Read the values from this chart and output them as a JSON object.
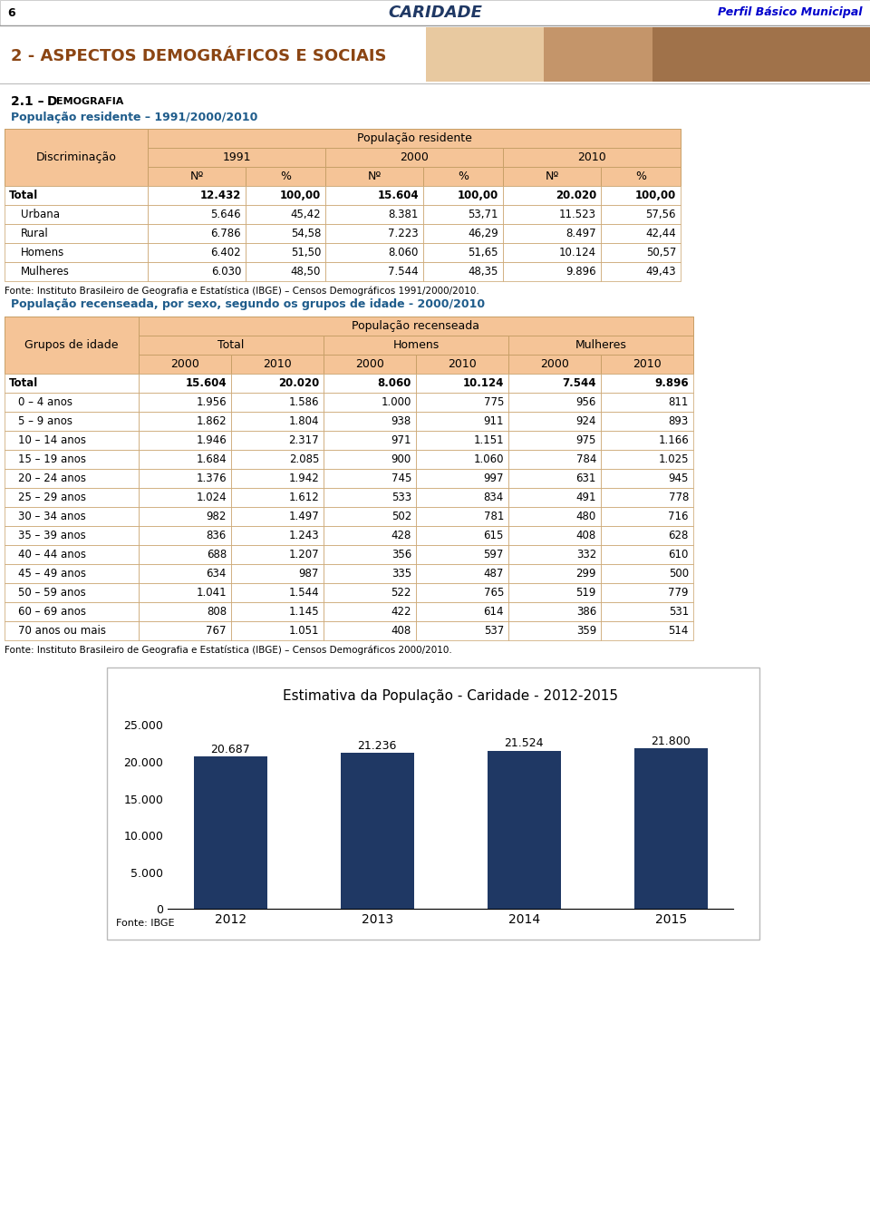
{
  "page_num": "6",
  "title_center": "CARIDADE",
  "title_right": "Perfil Básico Municipal",
  "section_title": "2 - ASPECTOS DEMOGRÁFICOS E SOCIAIS",
  "table1_title": "População residente – 1991/2000/2010",
  "table1_header_main": "População residente",
  "table1_rows": [
    [
      "Total",
      "12.432",
      "100,00",
      "15.604",
      "100,00",
      "20.020",
      "100,00"
    ],
    [
      "Urbana",
      "5.646",
      "45,42",
      "8.381",
      "53,71",
      "11.523",
      "57,56"
    ],
    [
      "Rural",
      "6.786",
      "54,58",
      "7.223",
      "46,29",
      "8.497",
      "42,44"
    ],
    [
      "Homens",
      "6.402",
      "51,50",
      "8.060",
      "51,65",
      "10.124",
      "50,57"
    ],
    [
      "Mulheres",
      "6.030",
      "48,50",
      "7.544",
      "48,35",
      "9.896",
      "49,43"
    ]
  ],
  "table1_note": "Fonte: Instituto Brasileiro de Geografia e Estatística (IBGE) – Censos Demográficos 1991/2000/2010.",
  "table2_title": "População recenseada, por sexo, segundo os grupos de idade - 2000/2010",
  "table2_header_main": "População recenseada",
  "table2_rows": [
    [
      "Total",
      "15.604",
      "20.020",
      "8.060",
      "10.124",
      "7.544",
      "9.896"
    ],
    [
      "0 – 4 anos",
      "1.956",
      "1.586",
      "1.000",
      "775",
      "956",
      "811"
    ],
    [
      "5 – 9 anos",
      "1.862",
      "1.804",
      "938",
      "911",
      "924",
      "893"
    ],
    [
      "10 – 14 anos",
      "1.946",
      "2.317",
      "971",
      "1.151",
      "975",
      "1.166"
    ],
    [
      "15 – 19 anos",
      "1.684",
      "2.085",
      "900",
      "1.060",
      "784",
      "1.025"
    ],
    [
      "20 – 24 anos",
      "1.376",
      "1.942",
      "745",
      "997",
      "631",
      "945"
    ],
    [
      "25 – 29 anos",
      "1.024",
      "1.612",
      "533",
      "834",
      "491",
      "778"
    ],
    [
      "30 – 34 anos",
      "982",
      "1.497",
      "502",
      "781",
      "480",
      "716"
    ],
    [
      "35 – 39 anos",
      "836",
      "1.243",
      "428",
      "615",
      "408",
      "628"
    ],
    [
      "40 – 44 anos",
      "688",
      "1.207",
      "356",
      "597",
      "332",
      "610"
    ],
    [
      "45 – 49 anos",
      "634",
      "987",
      "335",
      "487",
      "299",
      "500"
    ],
    [
      "50 – 59 anos",
      "1.041",
      "1.544",
      "522",
      "765",
      "519",
      "779"
    ],
    [
      "60 – 69 anos",
      "808",
      "1.145",
      "422",
      "614",
      "386",
      "531"
    ],
    [
      "70 anos ou mais",
      "767",
      "1.051",
      "408",
      "537",
      "359",
      "514"
    ]
  ],
  "table2_note": "Fonte: Instituto Brasileiro de Geografia e Estatística (IBGE) – Censos Demográficos 2000/2010.",
  "chart_title": "Estimativa da População - Caridade - 2012-2015",
  "chart_years": [
    "2012",
    "2013",
    "2014",
    "2015"
  ],
  "chart_values": [
    20687,
    21236,
    21524,
    21800
  ],
  "chart_labels": [
    "20.687",
    "21.236",
    "21.524",
    "21.800"
  ],
  "chart_bar_color": "#1F3864",
  "chart_note": "Fonte: IBGE",
  "table_header_bg": "#F5C497",
  "table_border": "#C8A068",
  "section_title_color": "#8B4513",
  "blue_link": "#1F5C8B"
}
